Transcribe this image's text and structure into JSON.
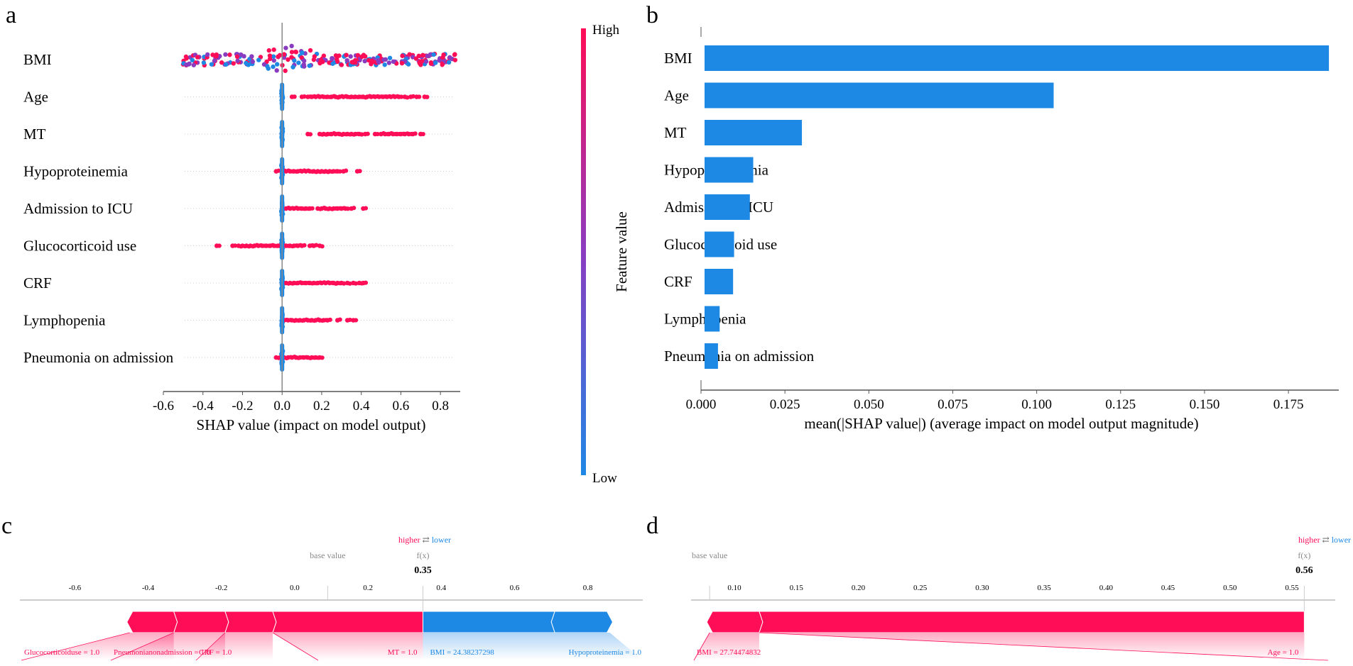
{
  "panels": {
    "a": "a",
    "b": "b",
    "c": "c",
    "d": "d"
  },
  "colors": {
    "high": "#ff0d57",
    "low": "#1e88e5",
    "mid": "#8a3cc0",
    "axis": "#555555",
    "grid": "#cccccc"
  },
  "chart_data": [
    {
      "id": "a",
      "type": "scatter",
      "title": "",
      "xlabel": "SHAP value (impact on model output)",
      "ylabel": "",
      "xlim": [
        -0.6,
        0.9
      ],
      "xticks": [
        -0.6,
        -0.4,
        -0.2,
        0.0,
        0.2,
        0.4,
        0.6,
        0.8
      ],
      "xtick_labels": [
        "-0.6",
        "-0.4",
        "-0.2",
        "0.0",
        "0.2",
        "0.4",
        "0.6",
        "0.8"
      ],
      "features": [
        "BMI",
        "Age",
        "MT",
        "Hypoproteinemia",
        "Admission to ICU",
        "Glucocorticoid use",
        "CRF",
        "Lymphopenia",
        "Pneumonia on admission"
      ],
      "colorbar": {
        "label": "Feature value",
        "high": "High",
        "low": "Low"
      },
      "series": [
        {
          "feature": "BMI",
          "high_range": [
            -0.5,
            0.88
          ],
          "low_range": [
            -0.5,
            0.85
          ],
          "mixed": true
        },
        {
          "feature": "Age",
          "low_value": 0.0,
          "high_points": [
            0.05,
            0.1,
            0.13,
            0.15,
            0.17,
            0.19,
            0.21,
            0.23,
            0.25,
            0.27,
            0.29,
            0.31,
            0.33,
            0.35,
            0.37,
            0.39,
            0.41,
            0.43,
            0.45,
            0.47,
            0.49,
            0.51,
            0.53,
            0.55,
            0.57,
            0.59,
            0.62,
            0.65,
            0.68,
            0.72
          ]
        },
        {
          "feature": "MT",
          "low_value": 0.0,
          "high_points": [
            0.13,
            0.19,
            0.21,
            0.23,
            0.25,
            0.27,
            0.29,
            0.31,
            0.33,
            0.35,
            0.37,
            0.39,
            0.42,
            0.47,
            0.5,
            0.52,
            0.54,
            0.56,
            0.58,
            0.6,
            0.62,
            0.64,
            0.66,
            0.7
          ]
        },
        {
          "feature": "Hypoproteinemia",
          "low_value": 0.0,
          "high_points": [
            -0.03,
            0.0,
            0.02,
            0.04,
            0.06,
            0.08,
            0.1,
            0.12,
            0.14,
            0.16,
            0.18,
            0.2,
            0.22,
            0.24,
            0.26,
            0.28,
            0.31,
            0.38
          ]
        },
        {
          "feature": "Admission to ICU",
          "low_value": 0.0,
          "high_points": [
            0.02,
            0.04,
            0.06,
            0.08,
            0.1,
            0.12,
            0.14,
            0.18,
            0.2,
            0.22,
            0.24,
            0.26,
            0.28,
            0.3,
            0.32,
            0.35,
            0.41
          ]
        },
        {
          "feature": "Glucocorticoid use",
          "low_value": 0.0,
          "high_points": [
            -0.33,
            -0.25,
            -0.22,
            -0.2,
            -0.18,
            -0.16,
            -0.14,
            -0.12,
            -0.1,
            -0.08,
            -0.06,
            -0.04,
            -0.02,
            0.0,
            0.02,
            0.04,
            0.06,
            0.08,
            0.1,
            0.14,
            0.16,
            0.19
          ]
        },
        {
          "feature": "CRF",
          "low_value": 0.0,
          "high_points": [
            0.02,
            0.04,
            0.06,
            0.08,
            0.1,
            0.12,
            0.14,
            0.16,
            0.18,
            0.2,
            0.22,
            0.24,
            0.26,
            0.28,
            0.3,
            0.33,
            0.36,
            0.39,
            0.41
          ]
        },
        {
          "feature": "Lymphopenia",
          "low_value": 0.0,
          "high_points": [
            0.01,
            0.03,
            0.05,
            0.07,
            0.09,
            0.11,
            0.13,
            0.15,
            0.17,
            0.19,
            0.21,
            0.23,
            0.28,
            0.33,
            0.36
          ]
        },
        {
          "feature": "Pneumonia on admission",
          "low_value": 0.0,
          "high_points": [
            -0.03,
            -0.01,
            0.01,
            0.03,
            0.05,
            0.07,
            0.09,
            0.11,
            0.13,
            0.15,
            0.17,
            0.19
          ]
        }
      ]
    },
    {
      "id": "b",
      "type": "bar",
      "orientation": "horizontal",
      "title": "",
      "xlabel": "mean(|SHAP value|) (average impact on model output magnitude)",
      "xlim": [
        0.0,
        0.19
      ],
      "xticks": [
        0.0,
        0.025,
        0.05,
        0.075,
        0.1,
        0.125,
        0.15,
        0.175
      ],
      "xtick_labels": [
        "0.000",
        "0.025",
        "0.050",
        "0.075",
        "0.100",
        "0.125",
        "0.150",
        "0.175"
      ],
      "categories": [
        "BMI",
        "Age",
        "MT",
        "Hypoproteinemia",
        "Admission to ICU",
        "Glucocorticoid use",
        "CRF",
        "Lymphopenia",
        "Pneumonia on admission"
      ],
      "values": [
        0.186,
        0.104,
        0.029,
        0.0145,
        0.0135,
        0.0088,
        0.0085,
        0.0045,
        0.004
      ]
    },
    {
      "id": "c",
      "type": "force",
      "legend_higher": "higher",
      "legend_arrow": "⇄",
      "legend_lower": "lower",
      "base_value_label": "base value",
      "fx_label": "f(x)",
      "fx_value": "0.35",
      "fx": 0.35,
      "base_value": 0.09,
      "xlim": [
        -0.75,
        0.95
      ],
      "xticks": [
        -0.6,
        -0.4,
        -0.2,
        0.0,
        0.2,
        0.4,
        0.6,
        0.8
      ],
      "xtick_labels": [
        "-0.6",
        "-0.4",
        "-0.2",
        "0.0",
        "0.2",
        "0.4",
        "0.6",
        "0.8"
      ],
      "positive_segments": [
        {
          "label": "Glucocorticoiduse = 1.0",
          "start": -0.45,
          "end": -0.33
        },
        {
          "label": "Pneumonianonadmission = 1.0",
          "start": -0.33,
          "end": -0.19
        },
        {
          "label": "CRF = 1.0",
          "start": -0.19,
          "end": -0.06
        },
        {
          "label": "MT = 1.0",
          "start": -0.06,
          "end": 0.35
        }
      ],
      "negative_segments": [
        {
          "label": "BMI = 24.38237298",
          "start": 0.35,
          "end": 0.71
        },
        {
          "label": "Hypoproteinemia = 1.0",
          "start": 0.71,
          "end": 0.86
        }
      ]
    },
    {
      "id": "d",
      "type": "force",
      "legend_higher": "higher",
      "legend_arrow": "⇄",
      "legend_lower": "lower",
      "base_value_label": "base value",
      "fx_label": "f(x)",
      "fx_value": "0.56",
      "fx": 0.56,
      "base_value": 0.08,
      "xlim": [
        0.065,
        0.585
      ],
      "xticks": [
        0.1,
        0.15,
        0.2,
        0.25,
        0.3,
        0.35,
        0.4,
        0.45,
        0.5,
        0.55
      ],
      "xtick_labels": [
        "0.10",
        "0.15",
        "0.20",
        "0.25",
        "0.30",
        "0.35",
        "0.40",
        "0.45",
        "0.50",
        "0.55"
      ],
      "positive_segments": [
        {
          "label": "BMI = 27.74474832",
          "start": 0.08,
          "end": 0.12
        },
        {
          "label": "Age = 1.0",
          "start": 0.12,
          "end": 0.56
        }
      ],
      "negative_segments": []
    }
  ]
}
